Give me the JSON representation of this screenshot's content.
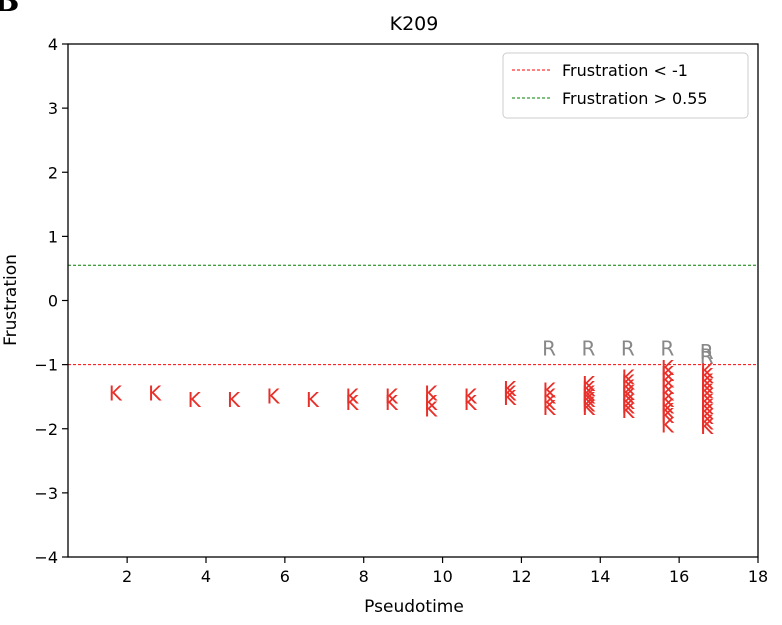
{
  "panel_label": "B",
  "chart_data": {
    "type": "scatter",
    "title": "K209",
    "xlabel": "Pseudotime",
    "ylabel": "Frustration",
    "xlim": [
      0.5,
      18
    ],
    "ylim": [
      -4,
      4
    ],
    "xticks": [
      2,
      4,
      6,
      8,
      10,
      12,
      14,
      16,
      18
    ],
    "yticks": [
      -4,
      -3,
      -2,
      -1,
      0,
      1,
      2,
      3,
      4
    ],
    "ytick_labels": [
      "−4",
      "−3",
      "−2",
      "−1",
      "0",
      "1",
      "2",
      "3",
      "4"
    ],
    "marker_type": "letter",
    "grid": false,
    "legend_position": "top-right",
    "reference_lines": [
      {
        "label": "Frustration < -1",
        "y": -1,
        "color": "#ff0000",
        "style": "dashed"
      },
      {
        "label": "Frustration > 0.55",
        "y": 0.55,
        "color": "#008000",
        "style": "dashed"
      }
    ],
    "series": [
      {
        "marker": "K",
        "color": "#e8302a",
        "points": [
          [
            1.7,
            -1.45
          ],
          [
            2.7,
            -1.45
          ],
          [
            3.7,
            -1.55
          ],
          [
            4.7,
            -1.55
          ],
          [
            5.7,
            -1.5
          ],
          [
            6.7,
            -1.55
          ],
          [
            7.7,
            -1.5
          ],
          [
            7.7,
            -1.6
          ],
          [
            8.7,
            -1.5
          ],
          [
            8.7,
            -1.6
          ],
          [
            9.7,
            -1.45
          ],
          [
            9.7,
            -1.6
          ],
          [
            9.7,
            -1.7
          ],
          [
            10.7,
            -1.5
          ],
          [
            10.7,
            -1.6
          ],
          [
            11.7,
            -1.38
          ],
          [
            11.7,
            -1.45
          ],
          [
            11.7,
            -1.52
          ],
          [
            12.7,
            -1.4
          ],
          [
            12.7,
            -1.5
          ],
          [
            12.7,
            -1.6
          ],
          [
            12.7,
            -1.68
          ],
          [
            13.7,
            -1.3
          ],
          [
            13.7,
            -1.38
          ],
          [
            13.7,
            -1.45
          ],
          [
            13.7,
            -1.5
          ],
          [
            13.7,
            -1.55
          ],
          [
            13.7,
            -1.62
          ],
          [
            13.7,
            -1.68
          ],
          [
            14.7,
            -1.2
          ],
          [
            14.7,
            -1.28
          ],
          [
            14.7,
            -1.36
          ],
          [
            14.7,
            -1.44
          ],
          [
            14.7,
            -1.5
          ],
          [
            14.7,
            -1.58
          ],
          [
            14.7,
            -1.65
          ],
          [
            14.7,
            -1.72
          ],
          [
            15.7,
            -1.05
          ],
          [
            15.7,
            -1.15
          ],
          [
            15.7,
            -1.25
          ],
          [
            15.7,
            -1.35
          ],
          [
            15.7,
            -1.45
          ],
          [
            15.7,
            -1.55
          ],
          [
            15.7,
            -1.65
          ],
          [
            15.7,
            -1.72
          ],
          [
            15.7,
            -1.8
          ],
          [
            15.7,
            -1.95
          ],
          [
            16.7,
            -1.1
          ],
          [
            16.7,
            -1.18
          ],
          [
            16.7,
            -1.26
          ],
          [
            16.7,
            -1.34
          ],
          [
            16.7,
            -1.42
          ],
          [
            16.7,
            -1.5
          ],
          [
            16.7,
            -1.58
          ],
          [
            16.7,
            -1.66
          ],
          [
            16.7,
            -1.74
          ],
          [
            16.7,
            -1.82
          ],
          [
            16.7,
            -1.9
          ],
          [
            16.7,
            -1.97
          ]
        ]
      },
      {
        "marker": "R",
        "color": "#888888",
        "points": [
          [
            12.7,
            -0.75
          ],
          [
            13.7,
            -0.75
          ],
          [
            14.7,
            -0.75
          ],
          [
            15.7,
            -0.75
          ],
          [
            16.7,
            -0.8
          ],
          [
            16.7,
            -0.87
          ]
        ]
      }
    ]
  }
}
